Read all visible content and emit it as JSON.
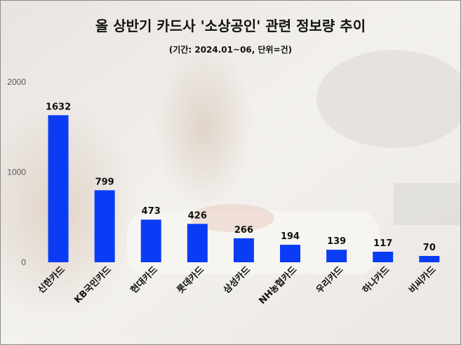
{
  "chart_data": {
    "type": "bar",
    "title": "올 상반기 카드사 '소상공인' 관련 정보량 추이",
    "subtitle": "(기간: 2024.01~06, 단위=건)",
    "categories": [
      "신한카드",
      "KB국민카드",
      "현대카드",
      "롯데카드",
      "삼성카드",
      "NH농협카드",
      "우리카드",
      "하나카드",
      "비씨카드"
    ],
    "values": [
      1632,
      799,
      473,
      426,
      266,
      194,
      139,
      117,
      70
    ],
    "ylim": [
      0,
      2000
    ],
    "yticks": [
      0,
      1000,
      2000
    ],
    "grid": false,
    "bar_color": "#0a3cf5"
  }
}
